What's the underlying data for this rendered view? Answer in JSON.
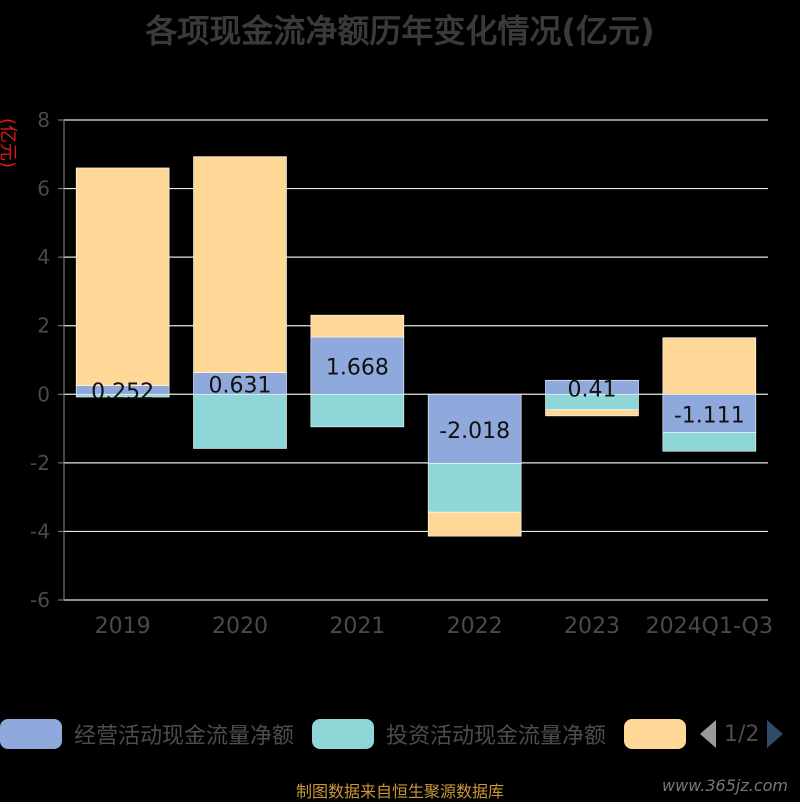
{
  "chart_data": {
    "type": "bar",
    "stacked": true,
    "title": "各项现金流净额历年变化情况(亿元)",
    "ylabel": "(亿元)",
    "categories": [
      "2019",
      "2020",
      "2021",
      "2022",
      "2023",
      "2024Q1-Q3"
    ],
    "ylim": [
      -6,
      8
    ],
    "yticks": [
      8,
      6,
      4,
      2,
      0,
      -2,
      -4,
      -6
    ],
    "grid": true,
    "series": [
      {
        "name": "经营活动现金流量净额",
        "color": "#8fa9dc",
        "values": [
          0.252,
          0.631,
          1.668,
          -2.018,
          0.41,
          -1.111
        ],
        "labels": [
          "0.252",
          "0.631",
          "1.668",
          "-2.018",
          "0.41",
          "-1.111"
        ]
      },
      {
        "name": "投资活动现金流量净额",
        "color": "#8fd6d8",
        "values": [
          -0.08,
          -1.58,
          -0.95,
          -1.42,
          -0.45,
          -0.55
        ]
      },
      {
        "name": "",
        "color": "#ffd898",
        "values": [
          6.35,
          6.3,
          0.64,
          -0.7,
          -0.18,
          1.65
        ]
      }
    ],
    "legend": {
      "position": "bottom",
      "page": "1/2"
    }
  },
  "footer": "制图数据来自恒生聚源数据库",
  "watermark": "www.365jz.com"
}
